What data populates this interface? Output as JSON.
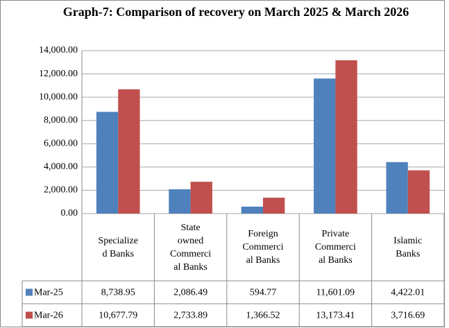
{
  "chart_data": {
    "type": "bar",
    "title": "Graph-7: Comparison of recovery on March 2025 & March 2026",
    "categories": [
      "Specialized Banks",
      "State owned Commercial Banks",
      "Foreign Commercial Banks",
      "Private Commercial Banks",
      "Islamic Banks"
    ],
    "series": [
      {
        "name": "Mar-25",
        "color": "#4f81bd",
        "values": [
          8738.95,
          2086.49,
          594.77,
          11601.09,
          4422.01
        ],
        "value_labels": [
          "8,738.95",
          "2,086.49",
          "594.77",
          "11,601.09",
          "4,422.01"
        ]
      },
      {
        "name": "Mar-26",
        "color": "#c0504d",
        "values": [
          10677.79,
          2733.89,
          1366.52,
          13173.41,
          3716.69
        ],
        "value_labels": [
          "10,677.79",
          "2,733.89",
          "1,366.52",
          "13,173.41",
          "3,716.69"
        ]
      }
    ],
    "ylim": [
      0,
      14000
    ],
    "yticks": [
      {
        "value": 0,
        "label": "0.00"
      },
      {
        "value": 2000,
        "label": "2,000.00"
      },
      {
        "value": 4000,
        "label": "4,000.00"
      },
      {
        "value": 6000,
        "label": "6,000.00"
      },
      {
        "value": 8000,
        "label": "8,000.00"
      },
      {
        "value": 10000,
        "label": "10,000.00"
      },
      {
        "value": 12000,
        "label": "12,000.00"
      },
      {
        "value": 14000,
        "label": "14,000.00"
      }
    ],
    "grid": true
  }
}
